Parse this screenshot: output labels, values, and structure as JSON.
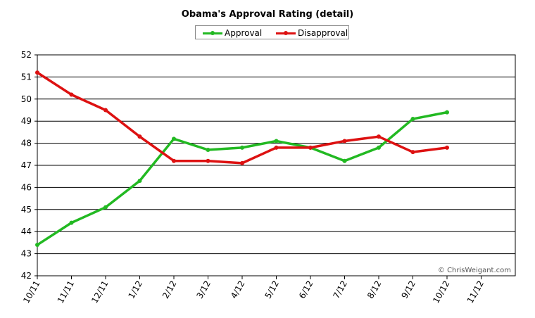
{
  "chart_data": {
    "type": "line",
    "title": "Obama's Approval Rating (detail)",
    "categories": [
      "10/11",
      "11/11",
      "12/11",
      "1/12",
      "2/12",
      "3/12",
      "4/12",
      "5/12",
      "6/12",
      "7/12",
      "8/12",
      "9/12",
      "10/12",
      "11/12"
    ],
    "series": [
      {
        "name": "Approval",
        "color": "#22b922",
        "values": [
          43.4,
          44.4,
          45.1,
          46.3,
          48.2,
          47.7,
          47.8,
          48.1,
          47.8,
          47.2,
          47.8,
          49.1,
          49.4,
          null
        ]
      },
      {
        "name": "Disapproval",
        "color": "#dd1111",
        "values": [
          51.2,
          50.2,
          49.5,
          48.3,
          47.2,
          47.2,
          47.1,
          47.8,
          47.8,
          48.1,
          48.3,
          47.6,
          47.8,
          null
        ]
      }
    ],
    "yticks": [
      42,
      43,
      44,
      45,
      46,
      47,
      48,
      49,
      50,
      51,
      52
    ],
    "ylim": [
      42,
      52
    ],
    "grid": true,
    "legend_position": "top-center",
    "credit": "© ChrisWeigant.com"
  }
}
